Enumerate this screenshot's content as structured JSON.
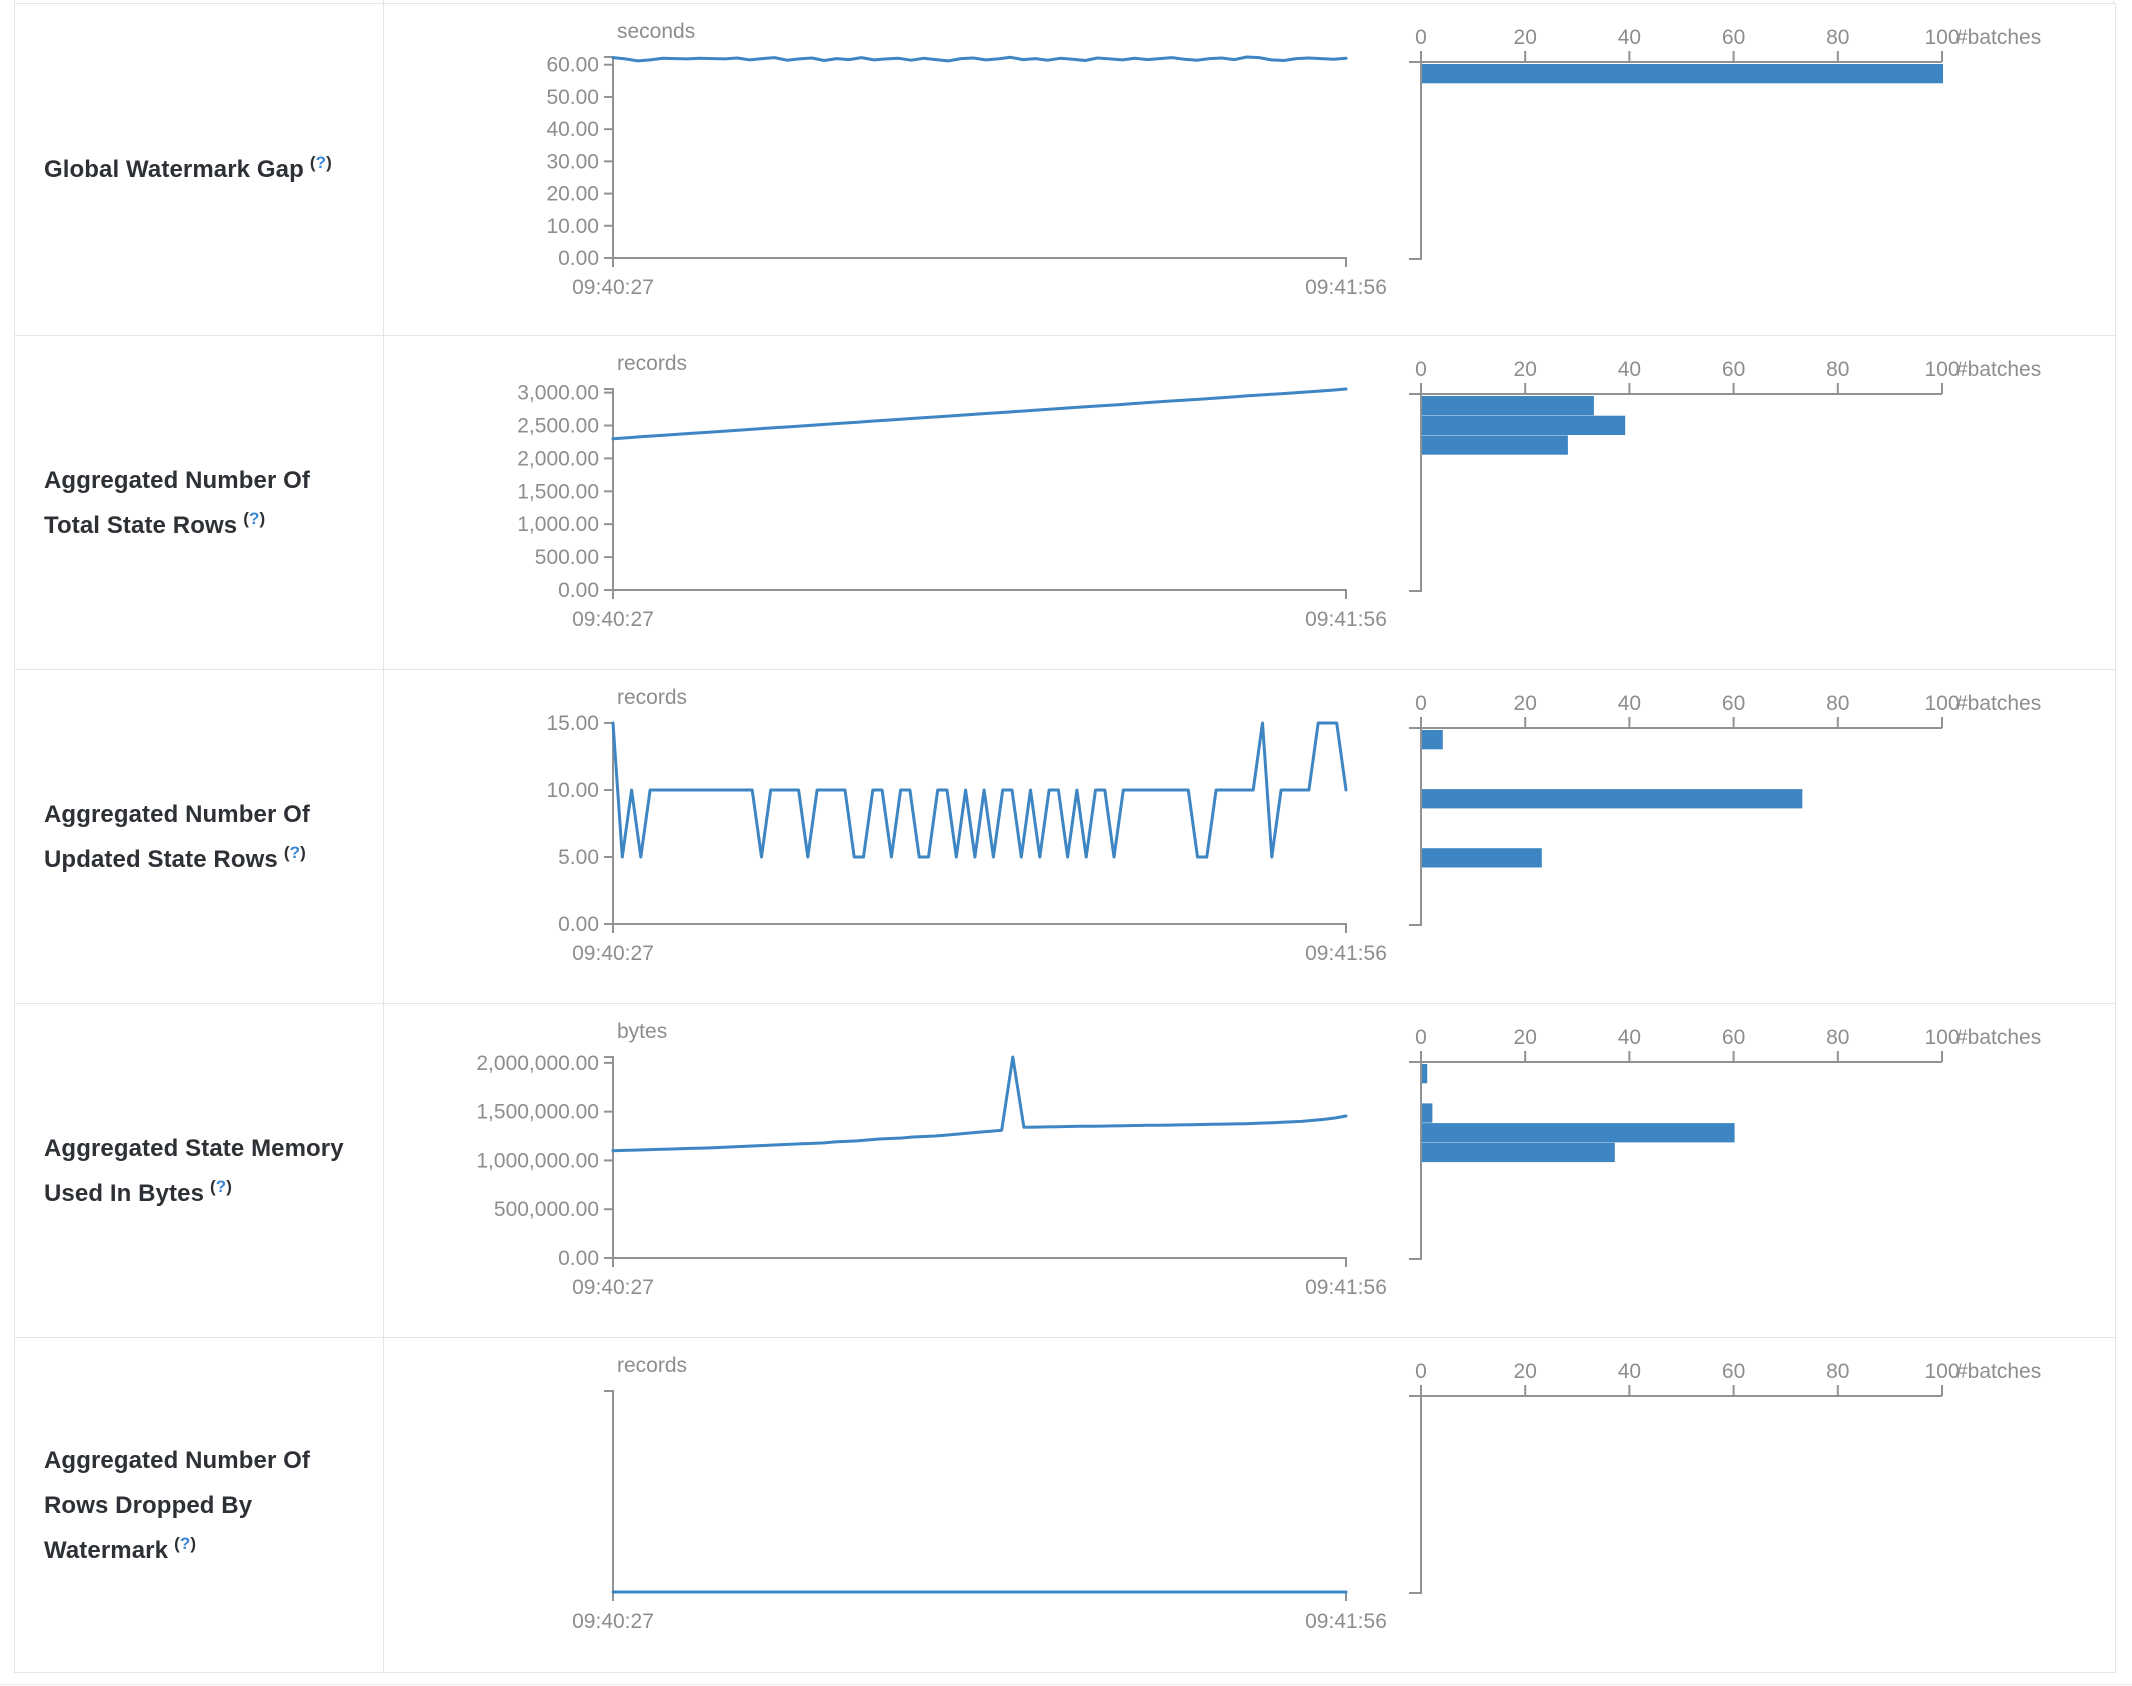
{
  "colors": {
    "accent_blue": "#3d86c3",
    "help_blue": "#3a86d4",
    "axis_gray": "#909396",
    "text_gray": "#8b8e91",
    "label_dark": "#2d3135",
    "border": "#e3e6e9"
  },
  "table": {
    "rows": [
      {
        "label": "Global Watermark Gap",
        "help_open": "(",
        "help_mark": "?",
        "help_close": ")"
      },
      {
        "label": "Aggregated Number Of Total State Rows",
        "help_open": "(",
        "help_mark": "?",
        "help_close": ")"
      },
      {
        "label": "Aggregated Number Of Updated State Rows",
        "help_open": "(",
        "help_mark": "?",
        "help_close": ")"
      },
      {
        "label": "Aggregated State Memory Used In Bytes",
        "help_open": "(",
        "help_mark": "?",
        "help_close": ")"
      },
      {
        "label": "Aggregated Number Of Rows Dropped By Watermark",
        "help_open": "(",
        "help_mark": "?",
        "help_close": ")"
      }
    ]
  },
  "chart_data": [
    {
      "id": "global-watermark-gap",
      "metric": "Global Watermark Gap",
      "timeline": {
        "type": "line",
        "unit": "seconds",
        "x_start": "09:40:27",
        "x_end": "09:41:56",
        "y_ticks": [
          0,
          10,
          20,
          30,
          40,
          50,
          60
        ],
        "y_max": 62.4,
        "values": [
          62.2,
          61.8,
          61.2,
          61.5,
          62.0,
          61.9,
          61.8,
          62.0,
          61.9,
          61.8,
          62.1,
          61.5,
          61.9,
          62.2,
          61.4,
          61.8,
          62.1,
          61.3,
          61.9,
          61.6,
          62.2,
          61.5,
          61.8,
          62.0,
          61.4,
          62.0,
          61.6,
          61.2,
          61.9,
          62.1,
          61.5,
          61.8,
          62.3,
          61.6,
          61.9,
          61.4,
          62.0,
          61.7,
          61.3,
          62.1,
          61.8,
          61.5,
          62.0,
          61.6,
          61.9,
          62.2,
          61.7,
          61.4,
          61.9,
          62.1,
          61.6,
          62.4,
          62.2,
          61.5,
          61.3,
          61.9,
          62.1,
          61.9,
          61.7,
          62.0
        ]
      },
      "histogram": {
        "type": "bar",
        "axis_label": "#batches",
        "x_ticks": [
          0,
          20,
          40,
          60,
          80,
          100
        ],
        "x_max": 100,
        "bars": [
          {
            "bin": 0,
            "count": 100
          }
        ]
      }
    },
    {
      "id": "total-state-rows",
      "metric": "Aggregated Number Of Total State Rows",
      "timeline": {
        "type": "line",
        "unit": "records",
        "x_start": "09:40:27",
        "x_end": "09:41:56",
        "y_ticks": [
          0,
          500,
          1000,
          1500,
          2000,
          2500,
          3000
        ],
        "y_max": 3055,
        "values": [
          2300,
          2317,
          2334,
          2350,
          2367,
          2384,
          2400,
          2417,
          2434,
          2451,
          2468,
          2484,
          2500,
          2517,
          2534,
          2551,
          2568,
          2584,
          2600,
          2617,
          2634,
          2651,
          2668,
          2684,
          2700,
          2717,
          2734,
          2751,
          2768,
          2784,
          2800,
          2817,
          2834,
          2851,
          2868,
          2884,
          2900,
          2917,
          2934,
          2951,
          2968,
          2984,
          3000,
          3017,
          3034,
          3055
        ]
      },
      "histogram": {
        "type": "bar",
        "axis_label": "#batches",
        "x_ticks": [
          0,
          20,
          40,
          60,
          80,
          100
        ],
        "x_max": 100,
        "bars": [
          {
            "bin": 0,
            "count": 33
          },
          {
            "bin": 1,
            "count": 39
          },
          {
            "bin": 2,
            "count": 28
          }
        ]
      }
    },
    {
      "id": "updated-state-rows",
      "metric": "Aggregated Number Of Updated State Rows",
      "timeline": {
        "type": "line",
        "unit": "records",
        "x_start": "09:40:27",
        "x_end": "09:41:56",
        "y_ticks": [
          0,
          5,
          10,
          15
        ],
        "y_max": 15,
        "values": [
          15,
          5,
          10,
          5,
          10,
          10,
          10,
          10,
          10,
          10,
          10,
          10,
          10,
          10,
          10,
          10,
          5,
          10,
          10,
          10,
          10,
          5,
          10,
          10,
          10,
          10,
          5,
          5,
          10,
          10,
          5,
          10,
          10,
          5,
          5,
          10,
          10,
          5,
          10,
          5,
          10,
          5,
          10,
          10,
          5,
          10,
          5,
          10,
          10,
          5,
          10,
          5,
          10,
          10,
          5,
          10,
          10,
          10,
          10,
          10,
          10,
          10,
          10,
          5,
          5,
          10,
          10,
          10,
          10,
          10,
          15,
          5,
          10,
          10,
          10,
          10,
          15,
          15,
          15,
          10
        ]
      },
      "histogram": {
        "type": "bar",
        "axis_label": "#batches",
        "x_ticks": [
          0,
          20,
          40,
          60,
          80,
          100
        ],
        "x_max": 100,
        "bars": [
          {
            "bin": 0,
            "count": 4
          },
          {
            "bin": 3,
            "count": 73
          },
          {
            "bin": 6,
            "count": 23
          }
        ]
      }
    },
    {
      "id": "state-memory-bytes",
      "metric": "Aggregated State Memory Used In Bytes",
      "timeline": {
        "type": "line",
        "unit": "bytes",
        "x_start": "09:40:27",
        "x_end": "09:41:56",
        "y_ticks": [
          0,
          500000,
          1000000,
          1500000,
          2000000
        ],
        "y_max": 2060000,
        "values": [
          1100000,
          1103000,
          1106000,
          1110000,
          1113000,
          1116000,
          1120000,
          1123000,
          1126000,
          1130000,
          1135000,
          1140000,
          1145000,
          1150000,
          1155000,
          1160000,
          1165000,
          1170000,
          1175000,
          1180000,
          1190000,
          1195000,
          1200000,
          1210000,
          1220000,
          1225000,
          1230000,
          1240000,
          1245000,
          1250000,
          1260000,
          1270000,
          1280000,
          1290000,
          1300000,
          1310000,
          2060000,
          1340000,
          1342000,
          1344000,
          1346000,
          1348000,
          1350000,
          1350000,
          1352000,
          1354000,
          1356000,
          1358000,
          1360000,
          1360000,
          1362000,
          1364000,
          1366000,
          1368000,
          1370000,
          1372000,
          1374000,
          1376000,
          1380000,
          1385000,
          1390000,
          1395000,
          1400000,
          1410000,
          1420000,
          1435000,
          1455000
        ]
      },
      "histogram": {
        "type": "bar",
        "axis_label": "#batches",
        "x_ticks": [
          0,
          20,
          40,
          60,
          80,
          100
        ],
        "x_max": 100,
        "bars": [
          {
            "bin": 0,
            "count": 1
          },
          {
            "bin": 2,
            "count": 2
          },
          {
            "bin": 3,
            "count": 60
          },
          {
            "bin": 4,
            "count": 37
          }
        ]
      }
    },
    {
      "id": "rows-dropped-by-watermark",
      "metric": "Aggregated Number Of Rows Dropped By Watermark",
      "timeline": {
        "type": "line",
        "unit": "records",
        "x_start": "09:40:27",
        "x_end": "09:41:56",
        "y_ticks": [],
        "y_max": 1,
        "values": [
          0,
          0
        ]
      },
      "histogram": {
        "type": "bar",
        "axis_label": "#batches",
        "x_ticks": [
          0,
          20,
          40,
          60,
          80,
          100
        ],
        "x_max": 100,
        "bars": []
      }
    }
  ]
}
